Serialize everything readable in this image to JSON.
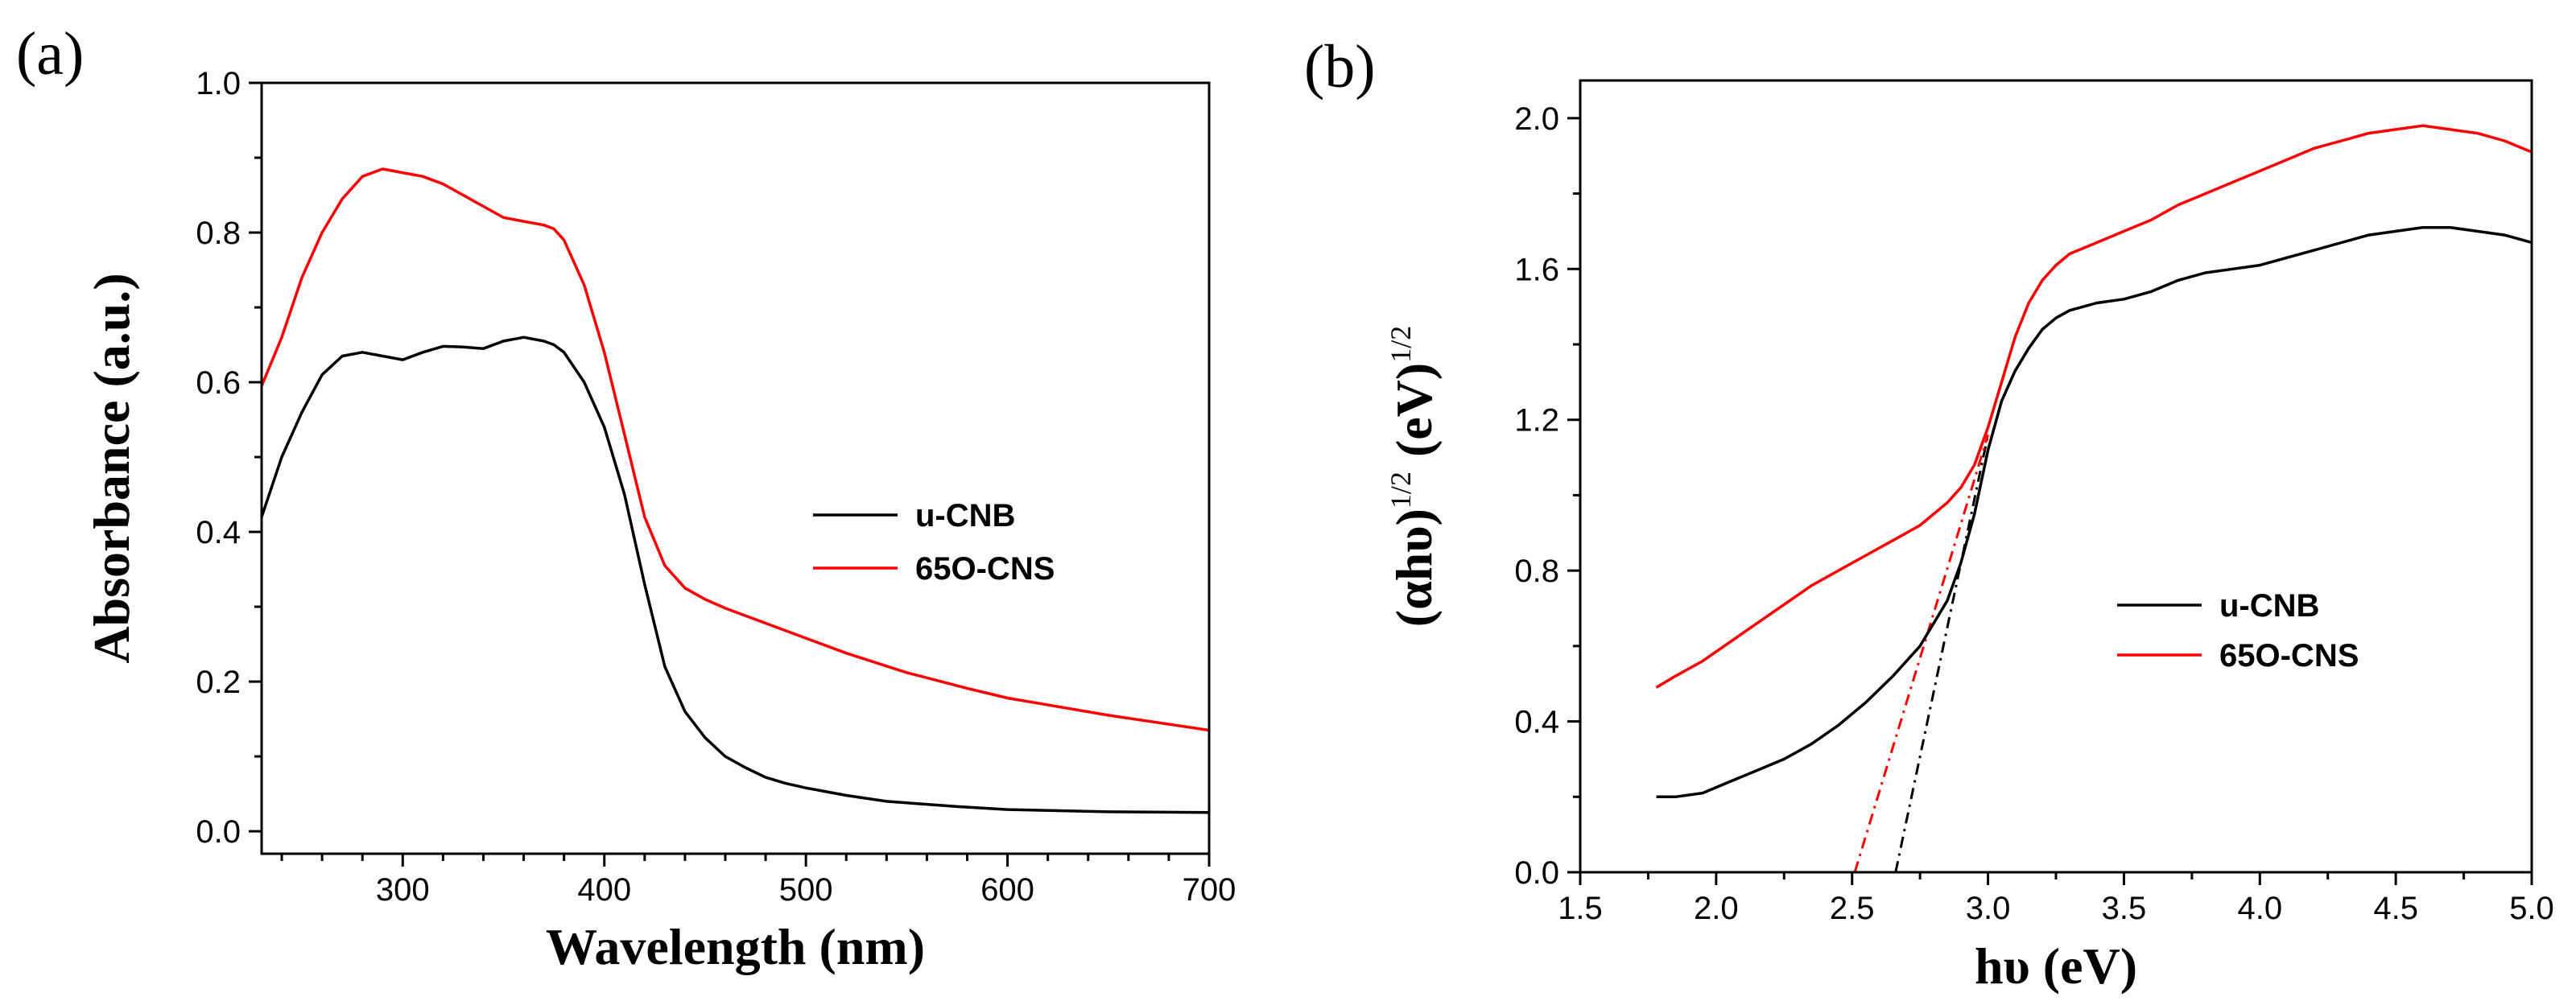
{
  "chart_data": [
    {
      "panel_label": "(a)",
      "type": "line",
      "xlabel": "Wavelength (nm)",
      "ylabel": "Absorbance (a.u.)",
      "xlim": [
        230,
        700
      ],
      "ylim": [
        -0.03,
        1.0
      ],
      "x_ticks": [
        300,
        400,
        500,
        600,
        700
      ],
      "x_tick_labels": [
        "300",
        "400",
        "500",
        "600",
        "700"
      ],
      "y_ticks": [
        0.0,
        0.2,
        0.4,
        0.6,
        0.8,
        1.0
      ],
      "y_tick_labels": [
        "0.0",
        "0.2",
        "0.4",
        "0.6",
        "0.8",
        "1.0"
      ],
      "legend_position": "center-right",
      "series": [
        {
          "name": "u-CNB",
          "color": "#000000",
          "points": [
            [
              230,
              0.42
            ],
            [
              240,
              0.5
            ],
            [
              250,
              0.56
            ],
            [
              260,
              0.61
            ],
            [
              270,
              0.635
            ],
            [
              280,
              0.64
            ],
            [
              290,
              0.635
            ],
            [
              300,
              0.63
            ],
            [
              310,
              0.64
            ],
            [
              320,
              0.648
            ],
            [
              330,
              0.647
            ],
            [
              340,
              0.645
            ],
            [
              350,
              0.655
            ],
            [
              360,
              0.66
            ],
            [
              370,
              0.655
            ],
            [
              375,
              0.65
            ],
            [
              380,
              0.64
            ],
            [
              390,
              0.6
            ],
            [
              400,
              0.54
            ],
            [
              410,
              0.45
            ],
            [
              420,
              0.33
            ],
            [
              430,
              0.22
            ],
            [
              440,
              0.16
            ],
            [
              450,
              0.125
            ],
            [
              460,
              0.1
            ],
            [
              470,
              0.085
            ],
            [
              480,
              0.072
            ],
            [
              490,
              0.064
            ],
            [
              500,
              0.058
            ],
            [
              520,
              0.048
            ],
            [
              540,
              0.04
            ],
            [
              550,
              0.038
            ],
            [
              575,
              0.033
            ],
            [
              600,
              0.029
            ],
            [
              650,
              0.026
            ],
            [
              700,
              0.025
            ]
          ]
        },
        {
          "name": "65O-CNS",
          "color": "#ff0000",
          "points": [
            [
              230,
              0.595
            ],
            [
              240,
              0.66
            ],
            [
              250,
              0.74
            ],
            [
              260,
              0.8
            ],
            [
              270,
              0.845
            ],
            [
              280,
              0.875
            ],
            [
              290,
              0.885
            ],
            [
              300,
              0.88
            ],
            [
              310,
              0.875
            ],
            [
              320,
              0.865
            ],
            [
              330,
              0.85
            ],
            [
              340,
              0.835
            ],
            [
              350,
              0.82
            ],
            [
              360,
              0.815
            ],
            [
              370,
              0.81
            ],
            [
              375,
              0.805
            ],
            [
              380,
              0.79
            ],
            [
              390,
              0.73
            ],
            [
              400,
              0.64
            ],
            [
              410,
              0.53
            ],
            [
              420,
              0.42
            ],
            [
              430,
              0.355
            ],
            [
              440,
              0.325
            ],
            [
              450,
              0.31
            ],
            [
              460,
              0.298
            ],
            [
              480,
              0.278
            ],
            [
              500,
              0.258
            ],
            [
              520,
              0.238
            ],
            [
              550,
              0.212
            ],
            [
              580,
              0.191
            ],
            [
              600,
              0.178
            ],
            [
              650,
              0.155
            ],
            [
              700,
              0.135
            ]
          ]
        }
      ]
    },
    {
      "panel_label": "(b)",
      "type": "line",
      "xlabel": "hυ (eV)",
      "ylabel_main": "(αhυ)",
      "ylabel_sup": "1/2",
      "ylabel_unit": "(eV)",
      "xlim": [
        1.5,
        5.0
      ],
      "ylim": [
        0.0,
        2.1
      ],
      "x_ticks": [
        1.5,
        2.0,
        2.5,
        3.0,
        3.5,
        4.0,
        4.5,
        5.0
      ],
      "x_tick_labels": [
        "1.5",
        "2.0",
        "2.5",
        "3.0",
        "3.5",
        "4.0",
        "4.5",
        "5.0"
      ],
      "y_ticks": [
        0.0,
        0.4,
        0.8,
        1.2,
        1.6,
        2.0
      ],
      "y_tick_labels": [
        "0.0",
        "0.4",
        "0.8",
        "1.2",
        "1.6",
        "2.0"
      ],
      "legend_position": "lower-right",
      "series": [
        {
          "name": "u-CNB",
          "color": "#000000",
          "points": [
            [
              1.78,
              0.2
            ],
            [
              1.85,
              0.2
            ],
            [
              1.95,
              0.21
            ],
            [
              2.05,
              0.24
            ],
            [
              2.15,
              0.27
            ],
            [
              2.25,
              0.3
            ],
            [
              2.35,
              0.34
            ],
            [
              2.45,
              0.39
            ],
            [
              2.55,
              0.45
            ],
            [
              2.65,
              0.52
            ],
            [
              2.75,
              0.6
            ],
            [
              2.85,
              0.72
            ],
            [
              2.9,
              0.82
            ],
            [
              2.95,
              0.95
            ],
            [
              3.0,
              1.12
            ],
            [
              3.05,
              1.25
            ],
            [
              3.1,
              1.33
            ],
            [
              3.15,
              1.39
            ],
            [
              3.2,
              1.44
            ],
            [
              3.25,
              1.47
            ],
            [
              3.3,
              1.49
            ],
            [
              3.4,
              1.51
            ],
            [
              3.5,
              1.52
            ],
            [
              3.6,
              1.54
            ],
            [
              3.7,
              1.57
            ],
            [
              3.8,
              1.59
            ],
            [
              3.9,
              1.6
            ],
            [
              4.0,
              1.61
            ],
            [
              4.1,
              1.63
            ],
            [
              4.2,
              1.65
            ],
            [
              4.3,
              1.67
            ],
            [
              4.4,
              1.69
            ],
            [
              4.5,
              1.7
            ],
            [
              4.6,
              1.71
            ],
            [
              4.7,
              1.71
            ],
            [
              4.8,
              1.7
            ],
            [
              4.9,
              1.69
            ],
            [
              5.0,
              1.67
            ]
          ]
        },
        {
          "name": "65O-CNS",
          "color": "#ff0000",
          "points": [
            [
              1.78,
              0.49
            ],
            [
              1.85,
              0.52
            ],
            [
              1.95,
              0.56
            ],
            [
              2.05,
              0.61
            ],
            [
              2.15,
              0.66
            ],
            [
              2.25,
              0.71
            ],
            [
              2.35,
              0.76
            ],
            [
              2.45,
              0.8
            ],
            [
              2.55,
              0.84
            ],
            [
              2.65,
              0.88
            ],
            [
              2.75,
              0.92
            ],
            [
              2.85,
              0.98
            ],
            [
              2.9,
              1.02
            ],
            [
              2.95,
              1.08
            ],
            [
              3.0,
              1.18
            ],
            [
              3.05,
              1.3
            ],
            [
              3.1,
              1.42
            ],
            [
              3.15,
              1.51
            ],
            [
              3.2,
              1.57
            ],
            [
              3.25,
              1.61
            ],
            [
              3.3,
              1.64
            ],
            [
              3.4,
              1.67
            ],
            [
              3.5,
              1.7
            ],
            [
              3.6,
              1.73
            ],
            [
              3.7,
              1.77
            ],
            [
              3.8,
              1.8
            ],
            [
              3.9,
              1.83
            ],
            [
              4.0,
              1.86
            ],
            [
              4.1,
              1.89
            ],
            [
              4.2,
              1.92
            ],
            [
              4.3,
              1.94
            ],
            [
              4.4,
              1.96
            ],
            [
              4.5,
              1.97
            ],
            [
              4.6,
              1.98
            ],
            [
              4.7,
              1.97
            ],
            [
              4.8,
              1.96
            ],
            [
              4.9,
              1.94
            ],
            [
              5.0,
              1.91
            ]
          ]
        }
      ],
      "tangent_lines": [
        {
          "color": "#000000",
          "style": "dash-dot",
          "x": [
            2.66,
            3.0
          ],
          "y": [
            0.0,
            1.16
          ]
        },
        {
          "color": "#ff0000",
          "style": "dash-dot",
          "x": [
            2.51,
            3.0
          ],
          "y": [
            0.0,
            1.16
          ]
        }
      ]
    }
  ]
}
